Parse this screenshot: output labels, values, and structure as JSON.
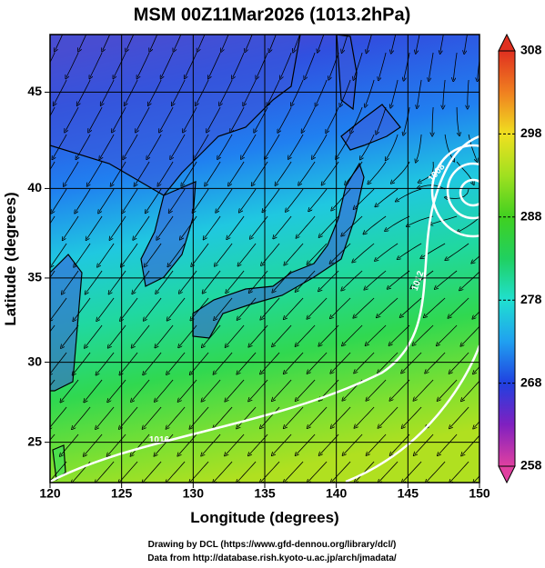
{
  "title": "MSM 00Z11Mar2026 (1013.2hPa)",
  "map": {
    "xlabel": "Longitude (degrees)",
    "ylabel": "Latitude  (degrees)",
    "xlim": [
      120,
      150
    ],
    "ylim": [
      22.4,
      47.8
    ],
    "xticks": [
      120,
      125,
      130,
      135,
      140,
      145,
      150
    ],
    "yticks": [
      25,
      30,
      35,
      40,
      45
    ],
    "contour_labels": [
      "1016",
      "1012",
      "1008"
    ]
  },
  "colorbar": {
    "lim": [
      258,
      308
    ],
    "ticks": [
      258,
      268,
      278,
      288,
      298,
      308
    ]
  },
  "credits": [
    "Drawing by DCL (https://www.gfd-dennou.org/library/dcl/)",
    "Data from http://database.rish.kyoto-u.ac.jp/arch/jmadata/"
  ]
}
